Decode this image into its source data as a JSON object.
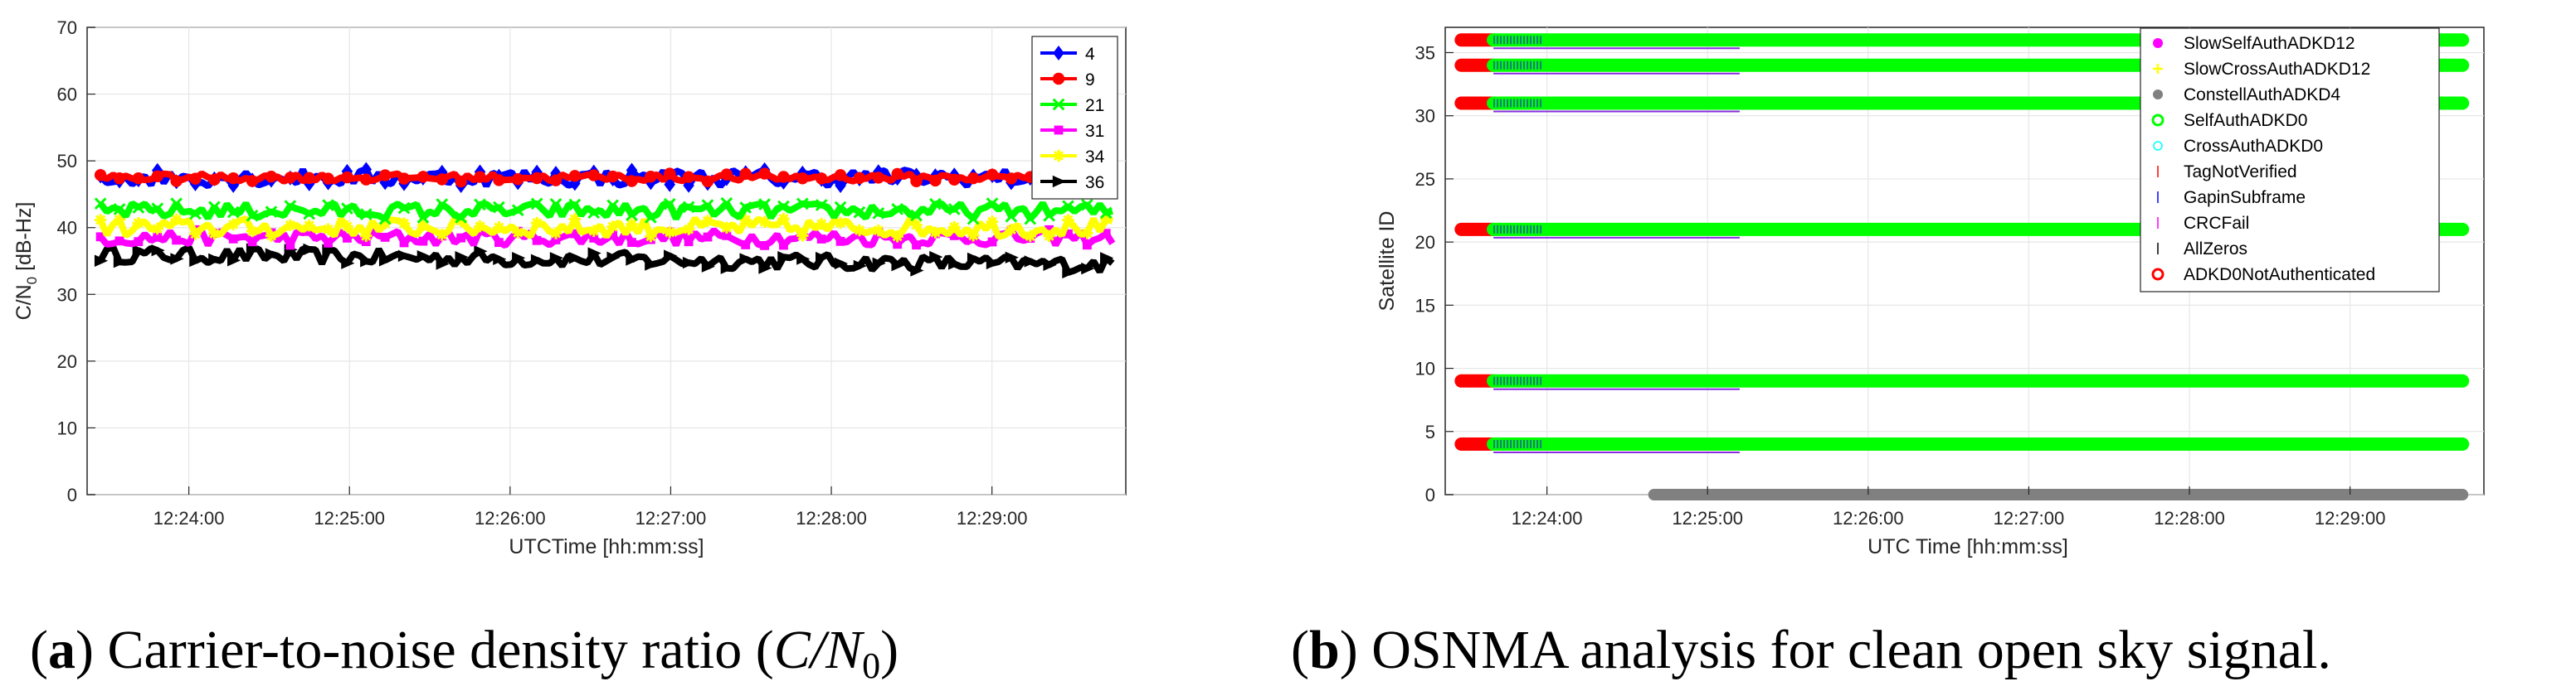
{
  "chart_data": [
    {
      "type": "line",
      "title": "",
      "xlabel": "UTCTime [hh:mm:ss]",
      "ylabel": "C/N0 [dB-Hz]",
      "ylabel_main": "C/N",
      "ylabel_sub": "0",
      "ylabel_unit": " [dB-Hz]",
      "xlim": [
        "12:23:22",
        "12:29:50"
      ],
      "ylim": [
        0,
        70
      ],
      "yticks": [
        "0",
        "10",
        "20",
        "30",
        "40",
        "50",
        "60",
        "70"
      ],
      "xticks": [
        "12:24:00",
        "12:25:00",
        "12:26:00",
        "12:27:00",
        "12:28:00",
        "12:29:00"
      ],
      "grid": true,
      "legend_position": "top-right",
      "series": [
        {
          "name": "4",
          "color": "#0000ff",
          "marker": "diamond",
          "level": 47.5,
          "spread": 1.3
        },
        {
          "name": "9",
          "color": "#ff0000",
          "marker": "circle",
          "level": 47.5,
          "spread": 0.6
        },
        {
          "name": "21",
          "color": "#00ff00",
          "marker": "x",
          "level": 42.5,
          "spread": 1.2
        },
        {
          "name": "31",
          "color": "#ff00ff",
          "marker": "square",
          "level": 38.5,
          "spread": 1.2
        },
        {
          "name": "34",
          "color": "#ffff00",
          "marker": "star",
          "level": 40.0,
          "spread": 1.4
        },
        {
          "name": "36",
          "color": "#000000",
          "marker": "triangle",
          "level": 36.0,
          "spread": 1.2
        }
      ]
    },
    {
      "type": "scatter",
      "title": "",
      "xlabel": "UTC Time [hh:mm:ss]",
      "ylabel": "Satellite ID",
      "xlim": [
        "12:23:22",
        "12:29:50"
      ],
      "ylim": [
        0,
        37
      ],
      "yticks": [
        "0",
        "5",
        "10",
        "15",
        "20",
        "25",
        "30",
        "35"
      ],
      "xticks": [
        "12:24:00",
        "12:25:00",
        "12:26:00",
        "12:27:00",
        "12:28:00",
        "12:29:00"
      ],
      "grid": true,
      "legend_position": "top-right",
      "legend": [
        {
          "name": "SlowSelfAuthADKD12",
          "color": "#ff00ff",
          "marker": "dot"
        },
        {
          "name": "SlowCrossAuthADKD12",
          "color": "#ffff00",
          "marker": "cross"
        },
        {
          "name": "ConstellAuthADKD4",
          "color": "#808080",
          "marker": "dot"
        },
        {
          "name": "SelfAuthADKD0",
          "color": "#00ff00",
          "marker": "ring"
        },
        {
          "name": "CrossAuthADKD0",
          "color": "#00ffff",
          "marker": "ring-small"
        },
        {
          "name": "TagNotVerified",
          "color": "#ff0000",
          "marker": "tick"
        },
        {
          "name": "GapinSubframe",
          "color": "#0000ff",
          "marker": "tick"
        },
        {
          "name": "CRCFail",
          "color": "#ff00ff",
          "marker": "tick"
        },
        {
          "name": "AllZeros",
          "color": "#000000",
          "marker": "tick"
        },
        {
          "name": "ADKD0NotAuthenticated",
          "color": "#ff0000",
          "marker": "ring"
        }
      ],
      "satellites": [
        36,
        34,
        31,
        21,
        9,
        4
      ],
      "not_authenticated_until": "12:23:40",
      "self_auth_from": "12:23:40",
      "self_auth_to": "12:29:42",
      "constellation_from": "12:24:40",
      "constellation_to": "12:29:42",
      "constellation_id": 0
    }
  ],
  "captions": {
    "a_label": "a",
    "a_text": "Carrier-to-noise density ratio",
    "a_math": "C/N",
    "a_sub": "0",
    "b_label": "b",
    "b_text": "OSNMA analysis for clean open sky signal."
  }
}
